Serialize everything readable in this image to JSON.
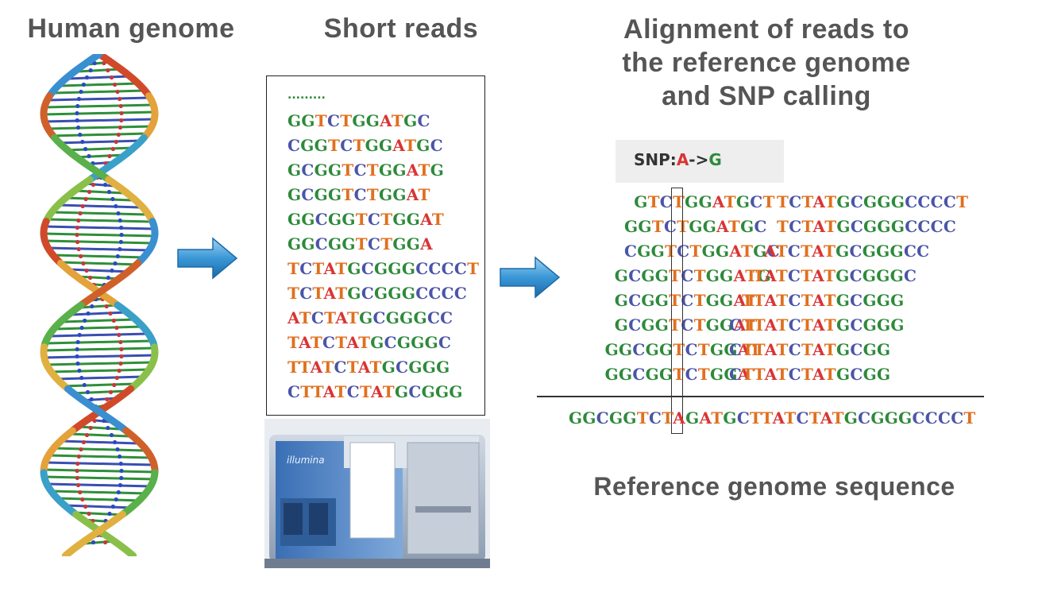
{
  "titles": {
    "human_genome": "Human genome",
    "short_reads": "Short reads",
    "alignment_line1": "Alignment of reads to",
    "alignment_line2": "the reference genome",
    "alignment_line3": "and SNP calling",
    "reference": "Reference genome  sequence"
  },
  "reads": {
    "dots": ".........",
    "sequences": [
      "GGTCTGGATGC",
      "CGGTCTGGATGC",
      "GCGGTCTGGATG",
      "GCGGTCTGGAT",
      "GGCGGTCTGGAT",
      "GGCGGTCTGGA",
      "TCTATGCGGGCCCCT",
      "TCTATGCGGGCCCC",
      "ATCTATGCGGGCC",
      "TATCTATGCGGGC",
      "TTATCTATGCGGG",
      "CTTATCTATGCGGG"
    ]
  },
  "snp": {
    "prefix": "SNP:",
    "from": "A",
    "arrow": "->",
    "to": "G"
  },
  "alignment": {
    "left_reads": [
      "GTCTGGATGCT",
      "GGTCTGGATGC",
      "CGGTCTGGATGC",
      "GCGGTCTGGATG",
      "GCGGTCTGGAT",
      "GCGGTCTGGAT",
      "GGCGGTCTGGAT",
      "GGCGGTCTGGA"
    ],
    "right_reads": [
      "TCTATGCGGGCCCCT",
      "TCTATGCGGGCCCC",
      "ATCTATGCGGGCC",
      "TATCTATGCGGGC",
      "TTATCTATGCGGG",
      "CTTATCTATGCGGG",
      "CTTATCTATGCGG",
      "CTTATCTATGCGG"
    ],
    "reference": "GGCGGTCTAGATGCTTATCTATGCGGGCCCCT"
  },
  "colors": {
    "A": "#d93434",
    "T": "#e0701f",
    "G": "#2d8a3a",
    "C": "#4a55a8",
    "arrow": "#2e8fd0",
    "title": "#555555"
  },
  "icons": {
    "dna": "dna-double-helix-icon",
    "sequencer": "illumina-sequencer-icon",
    "arrow": "arrow-right-icon"
  },
  "sequencer_label": "illumina"
}
